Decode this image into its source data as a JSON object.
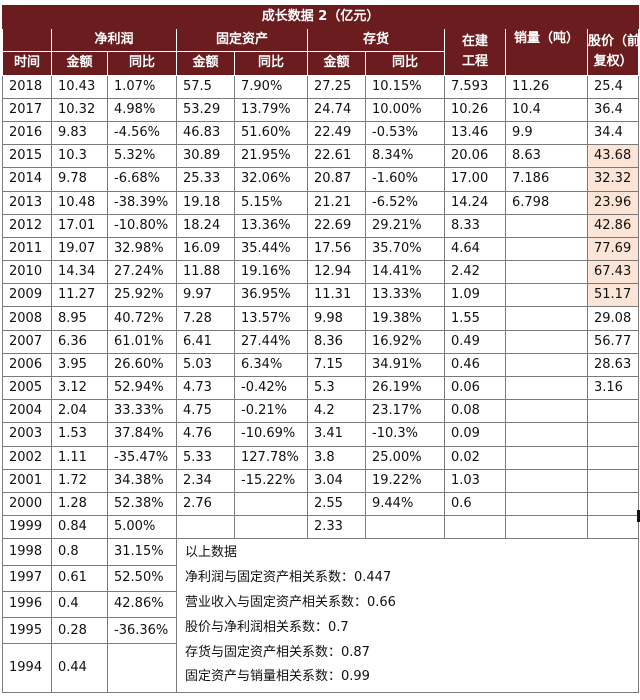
{
  "title": "成长数据 2（亿元）",
  "groups": {
    "time": "时间",
    "net_profit": "净利润",
    "fixed_assets": "固定资产",
    "inventory": "存货",
    "construction": "在建工程",
    "sales": "销量（吨）",
    "price": "股价（前复权）"
  },
  "construction_lines": [
    "在建",
    "工程"
  ],
  "price_lines": [
    "股价（前",
    "复权）"
  ],
  "sub": {
    "amount": "金额",
    "yoy": "同比"
  },
  "rows": [
    {
      "year": "2018",
      "np": "10.43",
      "np_yoy": "1.07%",
      "fa": "57.5",
      "fa_yoy": "7.90%",
      "inv": "27.25",
      "inv_yoy": "10.15%",
      "cip": "7.593",
      "sales": "11.26",
      "price": "25.4",
      "hi": false
    },
    {
      "year": "2017",
      "np": "10.32",
      "np_yoy": "4.98%",
      "fa": "53.29",
      "fa_yoy": "13.79%",
      "inv": "24.74",
      "inv_yoy": "10.00%",
      "cip": "10.26",
      "sales": "10.4",
      "price": "36.4",
      "hi": false
    },
    {
      "year": "2016",
      "np": "9.83",
      "np_yoy": "-4.56%",
      "fa": "46.83",
      "fa_yoy": "51.60%",
      "inv": "22.49",
      "inv_yoy": "-0.53%",
      "cip": "13.46",
      "sales": "9.9",
      "price": "34.4",
      "hi": false
    },
    {
      "year": "2015",
      "np": "10.3",
      "np_yoy": "5.32%",
      "fa": "30.89",
      "fa_yoy": "21.95%",
      "inv": "22.61",
      "inv_yoy": "8.34%",
      "cip": "20.06",
      "sales": "8.63",
      "price": "43.68",
      "hi": true
    },
    {
      "year": "2014",
      "np": "9.78",
      "np_yoy": "-6.68%",
      "fa": "25.33",
      "fa_yoy": "32.06%",
      "inv": "20.87",
      "inv_yoy": "-1.60%",
      "cip": "17.00",
      "sales": "7.186",
      "price": "32.32",
      "hi": true
    },
    {
      "year": "2013",
      "np": "10.48",
      "np_yoy": "-38.39%",
      "fa": "19.18",
      "fa_yoy": "5.15%",
      "inv": "21.21",
      "inv_yoy": "-6.52%",
      "cip": "14.24",
      "sales": "6.798",
      "price": "23.96",
      "hi": true
    },
    {
      "year": "2012",
      "np": "17.01",
      "np_yoy": "-10.80%",
      "fa": "18.24",
      "fa_yoy": "13.36%",
      "inv": "22.69",
      "inv_yoy": "29.21%",
      "cip": "8.33",
      "sales": "",
      "price": "42.86",
      "hi": true
    },
    {
      "year": "2011",
      "np": "19.07",
      "np_yoy": "32.98%",
      "fa": "16.09",
      "fa_yoy": "35.44%",
      "inv": "17.56",
      "inv_yoy": "35.70%",
      "cip": "4.64",
      "sales": "",
      "price": "77.69",
      "hi": true
    },
    {
      "year": "2010",
      "np": "14.34",
      "np_yoy": "27.24%",
      "fa": "11.88",
      "fa_yoy": "19.16%",
      "inv": "12.94",
      "inv_yoy": "14.41%",
      "cip": "2.42",
      "sales": "",
      "price": "67.43",
      "hi": true
    },
    {
      "year": "2009",
      "np": "11.27",
      "np_yoy": "25.92%",
      "fa": "9.97",
      "fa_yoy": "36.95%",
      "inv": "11.31",
      "inv_yoy": "13.33%",
      "cip": "1.09",
      "sales": "",
      "price": "51.17",
      "hi": true
    },
    {
      "year": "2008",
      "np": "8.95",
      "np_yoy": "40.72%",
      "fa": "7.28",
      "fa_yoy": "13.57%",
      "inv": "9.98",
      "inv_yoy": "19.38%",
      "cip": "1.55",
      "sales": "",
      "price": "29.08",
      "hi": false
    },
    {
      "year": "2007",
      "np": "6.36",
      "np_yoy": "61.01%",
      "fa": "6.41",
      "fa_yoy": "27.44%",
      "inv": "8.36",
      "inv_yoy": "16.92%",
      "cip": "0.49",
      "sales": "",
      "price": "56.77",
      "hi": false
    },
    {
      "year": "2006",
      "np": "3.95",
      "np_yoy": "26.60%",
      "fa": "5.03",
      "fa_yoy": "6.34%",
      "inv": "7.15",
      "inv_yoy": "34.91%",
      "cip": "0.46",
      "sales": "",
      "price": "28.63",
      "hi": false
    },
    {
      "year": "2005",
      "np": "3.12",
      "np_yoy": "52.94%",
      "fa": "4.73",
      "fa_yoy": "-0.42%",
      "inv": "5.3",
      "inv_yoy": "26.19%",
      "cip": "0.06",
      "sales": "",
      "price": "3.16",
      "hi": false
    },
    {
      "year": "2004",
      "np": "2.04",
      "np_yoy": "33.33%",
      "fa": "4.75",
      "fa_yoy": "-0.21%",
      "inv": "4.2",
      "inv_yoy": "23.17%",
      "cip": "0.08",
      "sales": "",
      "price": "",
      "hi": false
    },
    {
      "year": "2003",
      "np": "1.53",
      "np_yoy": "37.84%",
      "fa": "4.76",
      "fa_yoy": "-10.69%",
      "inv": "3.41",
      "inv_yoy": "-10.3%",
      "cip": "0.09",
      "sales": "",
      "price": "",
      "hi": false
    },
    {
      "year": "2002",
      "np": "1.11",
      "np_yoy": "-35.47%",
      "fa": "5.33",
      "fa_yoy": "127.78%",
      "inv": "3.8",
      "inv_yoy": "25.00%",
      "cip": "0.02",
      "sales": "",
      "price": "",
      "hi": false
    },
    {
      "year": "2001",
      "np": "1.72",
      "np_yoy": "34.38%",
      "fa": "2.34",
      "fa_yoy": "-15.22%",
      "inv": "3.04",
      "inv_yoy": "19.22%",
      "cip": "1.03",
      "sales": "",
      "price": "",
      "hi": false
    },
    {
      "year": "2000",
      "np": "1.28",
      "np_yoy": "52.38%",
      "fa": "2.76",
      "fa_yoy": "",
      "inv": "2.55",
      "inv_yoy": "9.44%",
      "cip": "0.6",
      "sales": "",
      "price": "",
      "hi": false
    },
    {
      "year": "1999",
      "np": "0.84",
      "np_yoy": "5.00%",
      "fa": "",
      "fa_yoy": "",
      "inv": "2.33",
      "inv_yoy": "",
      "cip": "",
      "sales": "",
      "price": "",
      "hi": false
    }
  ],
  "tail_rows": [
    {
      "year": "1998",
      "np": "0.8",
      "np_yoy": "31.15%"
    },
    {
      "year": "1997",
      "np": "0.61",
      "np_yoy": "52.50%"
    },
    {
      "year": "1996",
      "np": "0.4",
      "np_yoy": "42.86%"
    },
    {
      "year": "1995",
      "np": "0.28",
      "np_yoy": "-36.36%"
    },
    {
      "year": "1994",
      "np": "0.44",
      "np_yoy": ""
    }
  ],
  "notes": [
    "以上数据",
    "净利润与固定资产相关系数：0.447",
    "营业收入与固定资产相关系数：0.66",
    "股价与净利润相关系数：0.7",
    "存货与固定资产相关系数：0.87",
    "固定资产与销量相关系数：0.99"
  ]
}
